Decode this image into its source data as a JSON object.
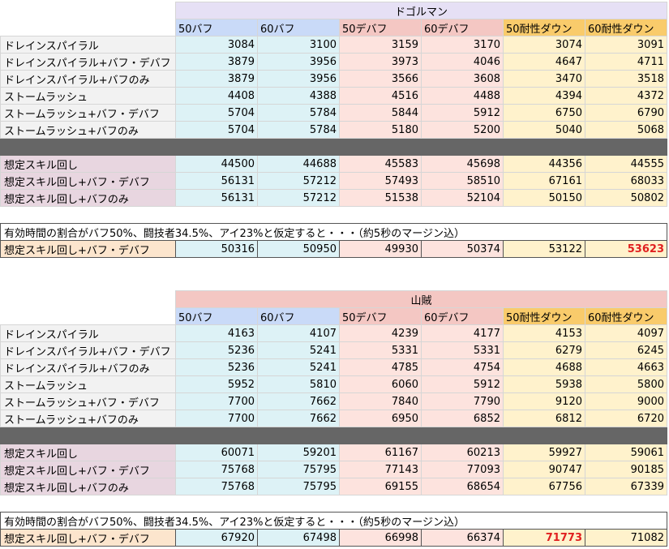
{
  "columns": [
    "50バフ",
    "60バフ",
    "50デバフ",
    "60デバフ",
    "50耐性ダウン",
    "60耐性ダウン"
  ],
  "tables": [
    {
      "title": "ドゴルマン",
      "rows": [
        {
          "label": "ドレインスパイラル",
          "values": [
            "3084",
            "3100",
            "3159",
            "3170",
            "3074",
            "3091"
          ]
        },
        {
          "label": "ドレインスパイラル+バフ・デバフ",
          "values": [
            "3879",
            "3956",
            "3973",
            "4046",
            "4647",
            "4711"
          ]
        },
        {
          "label": "ドレインスパイラル+バフのみ",
          "values": [
            "3879",
            "3956",
            "3566",
            "3608",
            "3470",
            "3518"
          ]
        },
        {
          "label": "ストームラッシュ",
          "values": [
            "4408",
            "4388",
            "4516",
            "4488",
            "4394",
            "4372"
          ]
        },
        {
          "label": "ストームラッシュ+バフ・デバフ",
          "values": [
            "5704",
            "5784",
            "5844",
            "5912",
            "6750",
            "6790"
          ]
        },
        {
          "label": "ストームラッシュ+バフのみ",
          "values": [
            "5704",
            "5784",
            "5180",
            "5200",
            "5040",
            "5068"
          ]
        }
      ],
      "skill_rows": [
        {
          "label": "想定スキル回し",
          "values": [
            "44500",
            "44688",
            "45583",
            "45698",
            "44356",
            "44555"
          ]
        },
        {
          "label": "想定スキル回し+バフ・デバフ",
          "values": [
            "56131",
            "57212",
            "57493",
            "58510",
            "67161",
            "68033"
          ]
        },
        {
          "label": "想定スキル回し+バフのみ",
          "values": [
            "56131",
            "57212",
            "51538",
            "52104",
            "50150",
            "50802"
          ]
        }
      ],
      "note": "有効時間の割合がバフ50%、闘技者34.5%、アイ23%と仮定すると・・・（約5秒のマージン込）",
      "summary": {
        "label": "想定スキル回し+バフ・デバフ",
        "values": [
          "50316",
          "50950",
          "49930",
          "50374",
          "53122",
          "53623"
        ],
        "highlight_index": 5
      }
    },
    {
      "title": "山賊",
      "rows": [
        {
          "label": "ドレインスパイラル",
          "values": [
            "4163",
            "4107",
            "4239",
            "4177",
            "4153",
            "4097"
          ]
        },
        {
          "label": "ドレインスパイラル+バフ・デバフ",
          "values": [
            "5236",
            "5241",
            "5331",
            "5331",
            "6279",
            "6245"
          ]
        },
        {
          "label": "ドレインスパイラル+バフのみ",
          "values": [
            "5236",
            "5241",
            "4785",
            "4754",
            "4688",
            "4663"
          ]
        },
        {
          "label": "ストームラッシュ",
          "values": [
            "5952",
            "5810",
            "6060",
            "5912",
            "5938",
            "5800"
          ]
        },
        {
          "label": "ストームラッシュ+バフ・デバフ",
          "values": [
            "7700",
            "7662",
            "7840",
            "7790",
            "9120",
            "9000"
          ]
        },
        {
          "label": "ストームラッシュ+バフのみ",
          "values": [
            "7700",
            "7662",
            "6950",
            "6852",
            "6812",
            "6720"
          ]
        }
      ],
      "skill_rows": [
        {
          "label": "想定スキル回し",
          "values": [
            "60071",
            "59201",
            "61167",
            "60213",
            "59927",
            "59061"
          ]
        },
        {
          "label": "想定スキル回し+バフ・デバフ",
          "values": [
            "75768",
            "75795",
            "77143",
            "77093",
            "90747",
            "90185"
          ]
        },
        {
          "label": "想定スキル回し+バフのみ",
          "values": [
            "75768",
            "75795",
            "69155",
            "68654",
            "67756",
            "67339"
          ]
        }
      ],
      "note": "有効時間の割合がバフ50%、闘技者34.5%、アイ23%と仮定すると・・・（約5秒のマージン込）",
      "summary": {
        "label": "想定スキル回し+バフ・デバフ",
        "values": [
          "67920",
          "67498",
          "66998",
          "66374",
          "71773",
          "71082"
        ],
        "highlight_index": 4
      }
    }
  ],
  "colors": {
    "buff_header": "#c9daf8",
    "debuff_header": "#f4c7c3",
    "resist_header": "#f9cb6b",
    "buff_cell": "#ddf2f6",
    "debuff_cell": "#fde3de",
    "resist_cell": "#fff2cc",
    "separator": "#666666",
    "highlight_text": "#e02020"
  }
}
